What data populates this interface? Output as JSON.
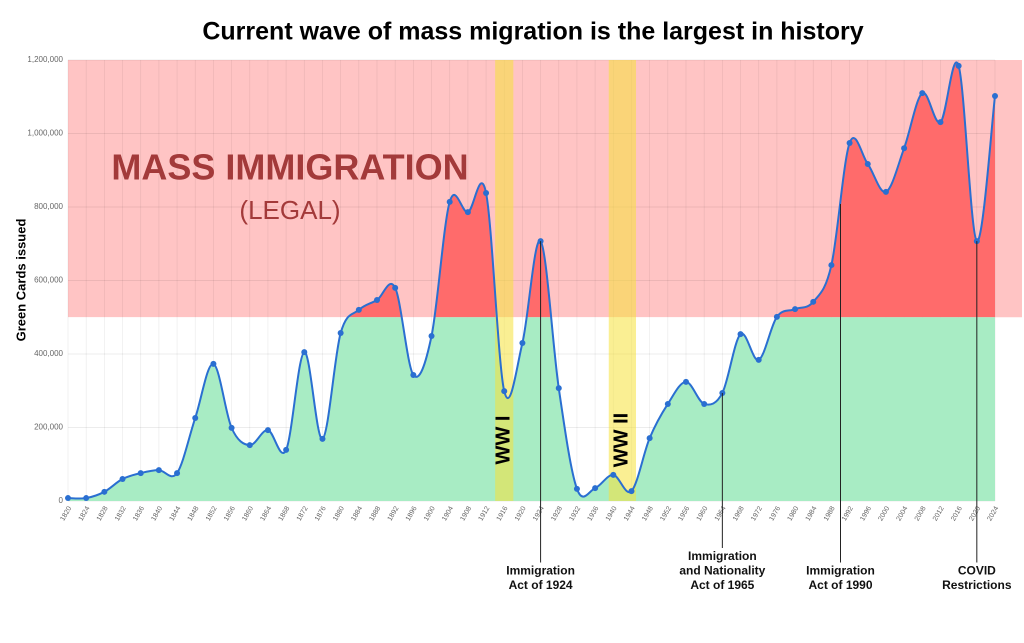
{
  "chart_data": {
    "type": "area",
    "title": "Current wave of mass migration is the largest in history",
    "y_label": "Green Cards issued",
    "x": [
      1820,
      1824,
      1828,
      1832,
      1836,
      1840,
      1844,
      1848,
      1852,
      1856,
      1860,
      1864,
      1868,
      1872,
      1876,
      1880,
      1884,
      1888,
      1892,
      1896,
      1900,
      1904,
      1908,
      1912,
      1916,
      1920,
      1924,
      1928,
      1932,
      1936,
      1940,
      1944,
      1948,
      1952,
      1956,
      1960,
      1964,
      1968,
      1972,
      1976,
      1980,
      1984,
      1988,
      1992,
      1996,
      2000,
      2004,
      2008,
      2012,
      2016,
      2020,
      2024
    ],
    "values": [
      8000,
      8000,
      25000,
      60000,
      76000,
      84000,
      76000,
      226000,
      373000,
      199000,
      152000,
      193000,
      139000,
      405000,
      169000,
      457000,
      520000,
      547000,
      580000,
      343000,
      449000,
      814000,
      786000,
      838000,
      299000,
      430000,
      707000,
      307000,
      33000,
      35000,
      71000,
      27000,
      171000,
      264000,
      324000,
      264000,
      294000,
      454000,
      384000,
      501000,
      522000,
      542000,
      642000,
      974000,
      917000,
      841000,
      960000,
      1110000,
      1031000,
      1184000,
      707000,
      1102000
    ],
    "line_color": "#2a6fd1",
    "fill_colors": {
      "below": "#a8ecc4",
      "above": "#ff6b6b"
    },
    "zone_colors": {
      "above": "#ffc4c4",
      "below": "#ffffff"
    },
    "threshold": 500000,
    "xlim": [
      1820,
      2024
    ],
    "ylim": [
      0,
      1200000
    ],
    "yticks": [
      0,
      {
        "value": 200000,
        "label": "200,000"
      },
      {
        "value": 400000,
        "label": "400,000"
      },
      {
        "value": 600000,
        "label": "600,000"
      },
      {
        "value": 800000,
        "label": "800,000"
      },
      {
        "value": 1000000,
        "label": "1,000,000"
      },
      {
        "value": 1200000,
        "label": "1,200,000"
      }
    ],
    "grid": true,
    "zone_label": "MASS IMMIGRATION",
    "zone_sublabel": "(LEGAL)",
    "wars": [
      {
        "label": "WW I",
        "range": [
          1914,
          1918
        ]
      },
      {
        "label": "WW II",
        "range": [
          1939,
          1945
        ]
      }
    ],
    "war_color": "#f5e13a",
    "annotations": [
      {
        "lines": [
          "Immigration",
          "Act of 1924"
        ],
        "x": 1924
      },
      {
        "lines": [
          "Immigration",
          "and Nationality",
          "Act of 1965"
        ],
        "x": 1964
      },
      {
        "lines": [
          "Immigration",
          "Act of 1990"
        ],
        "x": 1990
      },
      {
        "lines": [
          "COVID",
          "Restrictions"
        ],
        "x": 2020
      }
    ]
  }
}
